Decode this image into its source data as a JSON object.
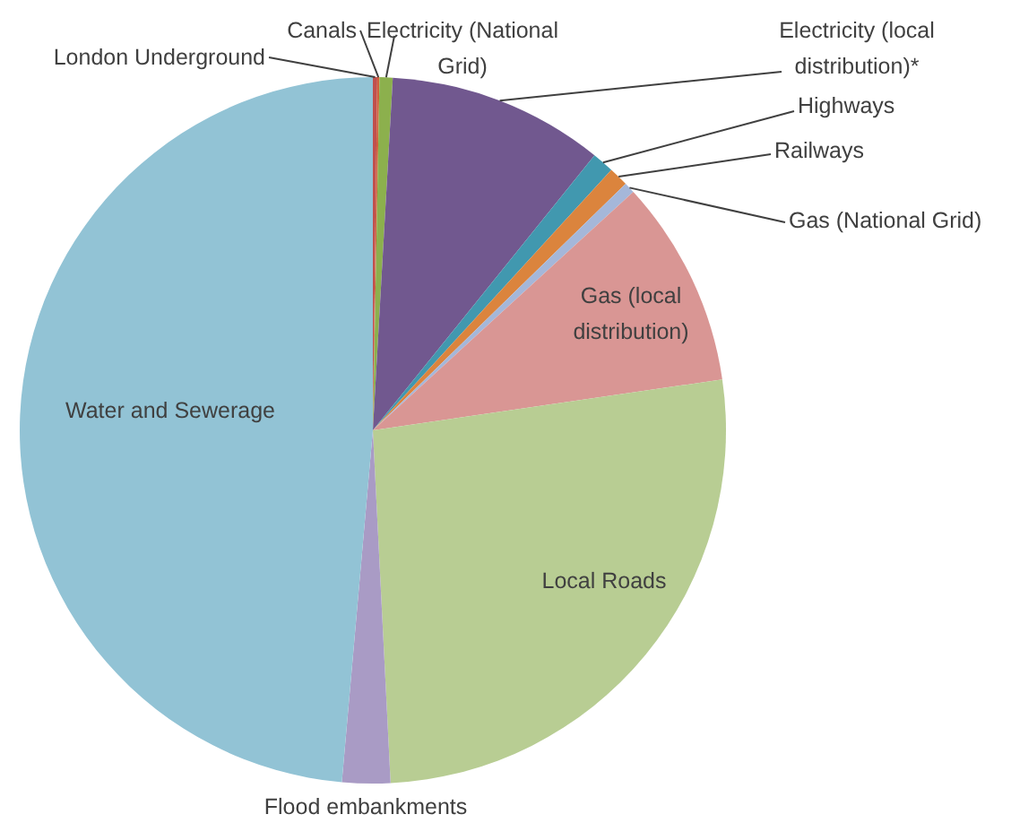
{
  "chart_data": {
    "type": "pie",
    "categories": [
      "London Underground",
      "Canals",
      "Electricity (National Grid)",
      "Electricity (local distribution)*",
      "Highways",
      "Railways",
      "Gas (National Grid)",
      "Gas (local distribution)",
      "Local Roads",
      "Flood embankments",
      "Water and Sewerage"
    ],
    "values": [
      0.2,
      0.1,
      0.6,
      9.9,
      1.0,
      0.9,
      0.5,
      9.5,
      26.5,
      2.2,
      48.6
    ],
    "colors": [
      "#c0504d",
      "#d0603d",
      "#8cb04d",
      "#71588f",
      "#4198af",
      "#db843d",
      "#a5b7d9",
      "#d99694",
      "#b8cd93",
      "#a99bc5",
      "#92c3d5"
    ]
  }
}
